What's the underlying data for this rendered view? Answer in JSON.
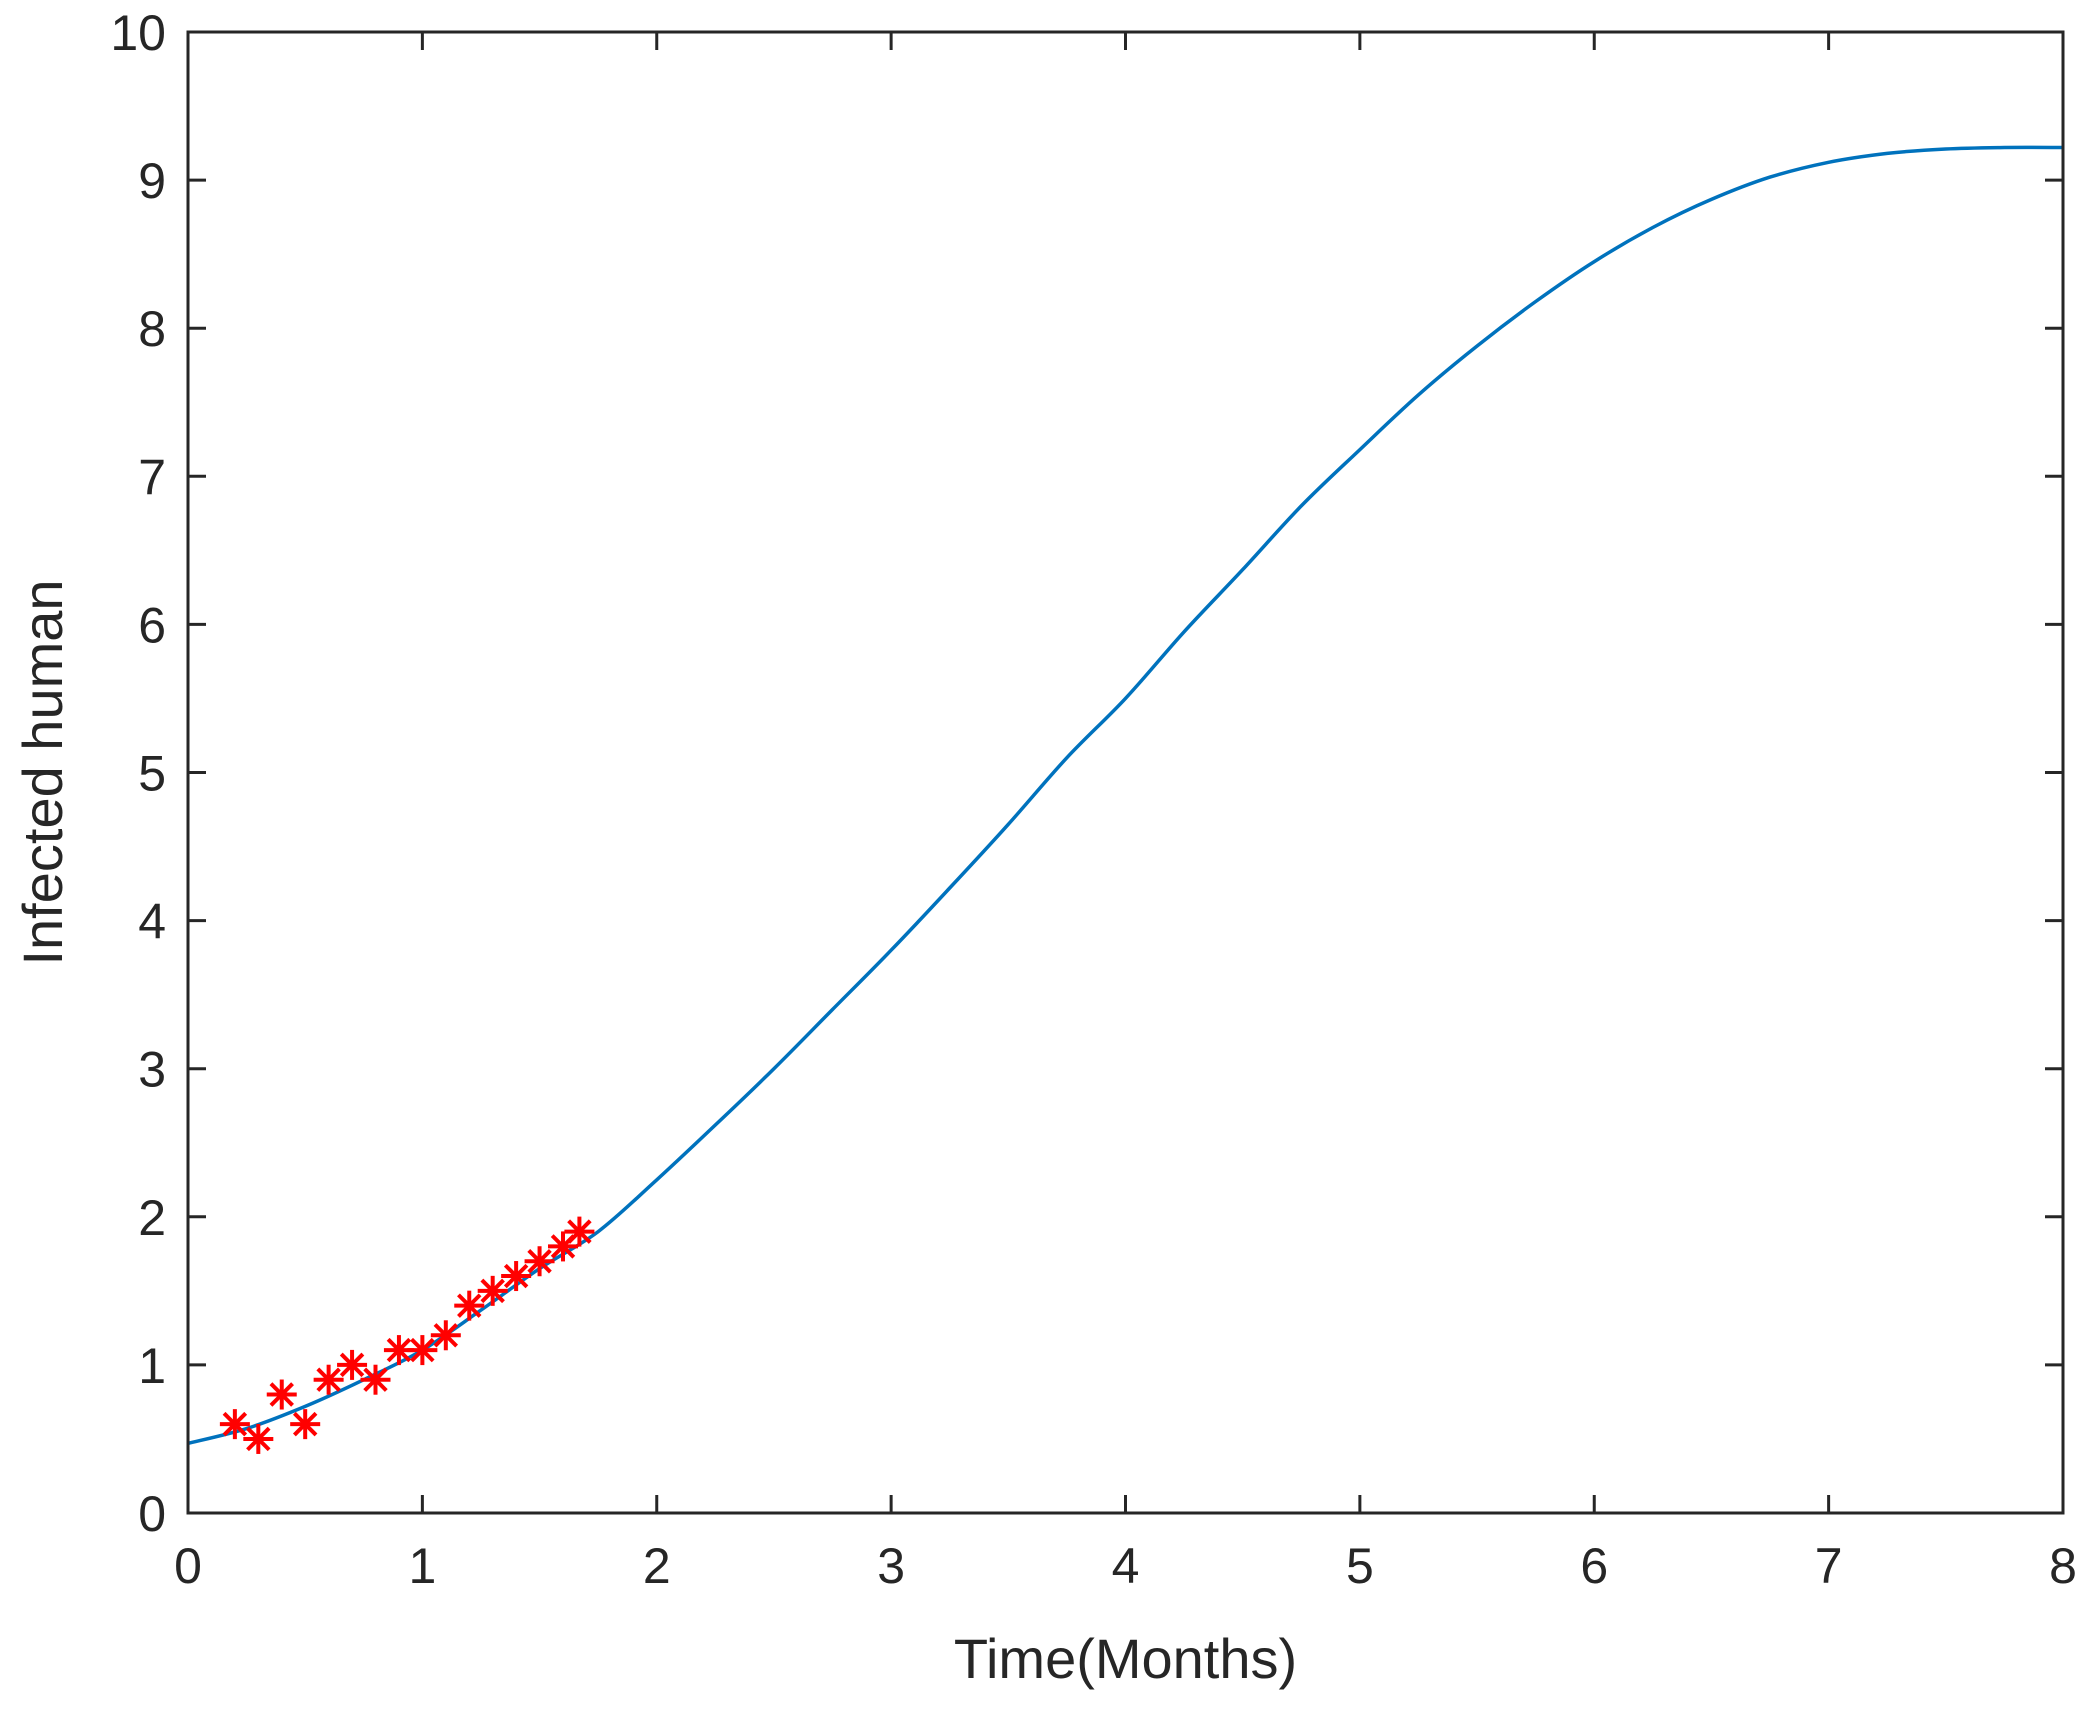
{
  "chart_data": {
    "type": "line",
    "title": "",
    "xlabel": "Time(Months)",
    "ylabel": "Infected human",
    "xlim": [
      0,
      8
    ],
    "ylim": [
      0,
      10
    ],
    "xticks": [
      0,
      1,
      2,
      3,
      4,
      5,
      6,
      7,
      8
    ],
    "yticks": [
      0,
      1,
      2,
      3,
      4,
      5,
      6,
      7,
      8,
      9,
      10
    ],
    "xtick_labels": [
      "0",
      "1",
      "2",
      "3",
      "4",
      "5",
      "6",
      "7",
      "8"
    ],
    "ytick_labels": [
      "0",
      "1",
      "2",
      "3",
      "4",
      "5",
      "6",
      "7",
      "8",
      "9",
      "10"
    ],
    "grid": false,
    "box": true,
    "legend": "none",
    "series": [
      {
        "kind": "line",
        "color": "#0072BD",
        "x": [
          0,
          0.25,
          0.5,
          0.75,
          1.0,
          1.25,
          1.5,
          1.75,
          2.0,
          2.25,
          2.5,
          2.75,
          3.0,
          3.25,
          3.5,
          3.75,
          4.0,
          4.25,
          4.5,
          4.75,
          5.0,
          5.25,
          5.5,
          5.75,
          6.0,
          6.25,
          6.5,
          6.75,
          7.0,
          7.25,
          7.5,
          7.75,
          8.0
        ],
        "y": [
          0.47,
          0.57,
          0.72,
          0.9,
          1.1,
          1.37,
          1.65,
          1.9,
          2.25,
          2.62,
          3.0,
          3.4,
          3.8,
          4.22,
          4.65,
          5.1,
          5.5,
          5.95,
          6.37,
          6.8,
          7.18,
          7.55,
          7.88,
          8.18,
          8.45,
          8.68,
          8.87,
          9.02,
          9.12,
          9.18,
          9.21,
          9.22,
          9.22
        ]
      },
      {
        "kind": "scatter",
        "marker": "asterisk",
        "color": "#FF0000",
        "x": [
          0.2,
          0.3,
          0.4,
          0.5,
          0.6,
          0.7,
          0.8,
          0.9,
          1.0,
          1.1,
          1.2,
          1.3,
          1.4,
          1.5,
          1.6,
          1.67
        ],
        "y": [
          0.6,
          0.5,
          0.8,
          0.6,
          0.9,
          1.0,
          0.9,
          1.1,
          1.1,
          1.2,
          1.4,
          1.5,
          1.6,
          1.7,
          1.8,
          1.9
        ]
      }
    ]
  }
}
